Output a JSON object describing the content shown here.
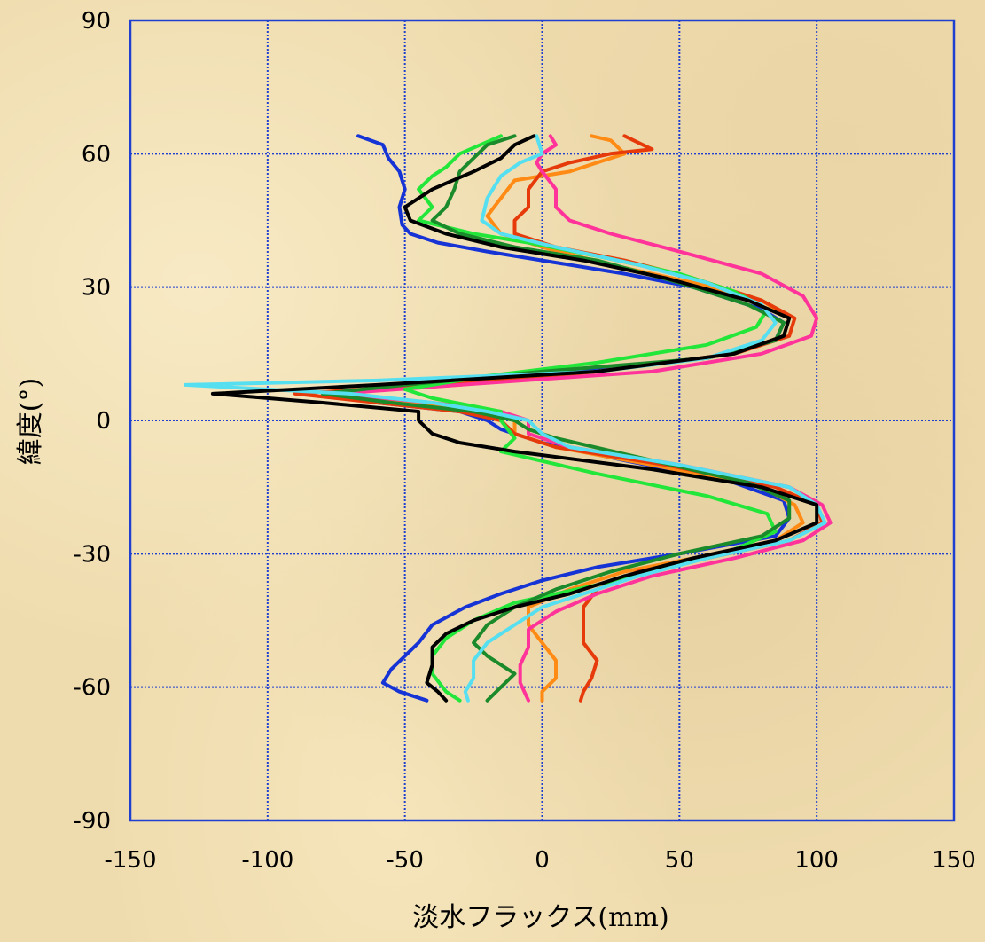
{
  "chart_data": {
    "type": "line",
    "title": "",
    "xlabel": "淡水フラックス(mm)",
    "ylabel": "緯度(°)",
    "xlim": [
      -150,
      150
    ],
    "ylim": [
      -90,
      90
    ],
    "x_ticks": [
      "-150",
      "-100",
      "-50",
      "0",
      "50",
      "100",
      "150"
    ],
    "y_ticks": [
      "90",
      "60",
      "30",
      "0",
      "-30",
      "-60",
      "-90"
    ],
    "grid": true,
    "legend": "none",
    "series": [
      {
        "color": "#1634d6",
        "points": [
          [
            -67,
            64
          ],
          [
            -58,
            62
          ],
          [
            -56,
            59
          ],
          [
            -52,
            56
          ],
          [
            -50,
            52
          ],
          [
            -52,
            48
          ],
          [
            -51,
            44
          ],
          [
            -48,
            42
          ],
          [
            -38,
            40
          ],
          [
            -20,
            38
          ],
          [
            0,
            36
          ],
          [
            30,
            33
          ],
          [
            55,
            30
          ],
          [
            80,
            25
          ],
          [
            88,
            22
          ],
          [
            85,
            18
          ],
          [
            60,
            14
          ],
          [
            10,
            11
          ],
          [
            -40,
            8
          ],
          [
            -80,
            6
          ],
          [
            -60,
            4
          ],
          [
            -30,
            2
          ],
          [
            -20,
            0
          ],
          [
            -15,
            -2
          ],
          [
            0,
            -5
          ],
          [
            30,
            -9
          ],
          [
            70,
            -14
          ],
          [
            88,
            -18
          ],
          [
            90,
            -22
          ],
          [
            85,
            -26
          ],
          [
            50,
            -30
          ],
          [
            20,
            -33
          ],
          [
            0,
            -36
          ],
          [
            -15,
            -39
          ],
          [
            -28,
            -42
          ],
          [
            -40,
            -46
          ],
          [
            -45,
            -50
          ],
          [
            -50,
            -53
          ],
          [
            -55,
            -56
          ],
          [
            -58,
            -59
          ],
          [
            -52,
            -61
          ],
          [
            -42,
            -63
          ]
        ]
      },
      {
        "color": "#ff8a14",
        "points": [
          [
            18,
            64
          ],
          [
            25,
            63
          ],
          [
            30,
            60
          ],
          [
            20,
            58
          ],
          [
            10,
            56
          ],
          [
            -10,
            54
          ],
          [
            -15,
            50
          ],
          [
            -20,
            46
          ],
          [
            -15,
            42
          ],
          [
            0,
            39
          ],
          [
            25,
            35
          ],
          [
            55,
            31
          ],
          [
            80,
            27
          ],
          [
            90,
            23
          ],
          [
            88,
            19
          ],
          [
            70,
            15
          ],
          [
            20,
            11
          ],
          [
            -30,
            8
          ],
          [
            -80,
            6
          ],
          [
            -50,
            4
          ],
          [
            -20,
            2
          ],
          [
            -10,
            0
          ],
          [
            -10,
            -3
          ],
          [
            5,
            -6
          ],
          [
            40,
            -10
          ],
          [
            80,
            -15
          ],
          [
            92,
            -19
          ],
          [
            95,
            -23
          ],
          [
            85,
            -27
          ],
          [
            55,
            -31
          ],
          [
            30,
            -34
          ],
          [
            10,
            -38
          ],
          [
            -5,
            -42
          ],
          [
            -5,
            -46
          ],
          [
            0,
            -50
          ],
          [
            5,
            -54
          ],
          [
            5,
            -58
          ],
          [
            0,
            -61
          ],
          [
            0,
            -63
          ]
        ]
      },
      {
        "color": "#e63a0a",
        "points": [
          [
            30,
            64
          ],
          [
            40,
            61
          ],
          [
            25,
            60
          ],
          [
            10,
            58
          ],
          [
            0,
            56
          ],
          [
            -5,
            52
          ],
          [
            -5,
            48
          ],
          [
            -10,
            45
          ],
          [
            -10,
            42
          ],
          [
            5,
            39
          ],
          [
            30,
            36
          ],
          [
            55,
            32
          ],
          [
            80,
            27
          ],
          [
            92,
            23
          ],
          [
            90,
            19
          ],
          [
            70,
            15
          ],
          [
            20,
            11
          ],
          [
            -40,
            8
          ],
          [
            -90,
            6
          ],
          [
            -60,
            4
          ],
          [
            -30,
            2
          ],
          [
            -15,
            0
          ],
          [
            -10,
            -3
          ],
          [
            5,
            -6
          ],
          [
            45,
            -10
          ],
          [
            85,
            -15
          ],
          [
            100,
            -19
          ],
          [
            102,
            -23
          ],
          [
            90,
            -27
          ],
          [
            60,
            -31
          ],
          [
            35,
            -34
          ],
          [
            20,
            -38
          ],
          [
            15,
            -42
          ],
          [
            15,
            -46
          ],
          [
            15,
            -50
          ],
          [
            20,
            -54
          ],
          [
            18,
            -58
          ],
          [
            15,
            -61
          ],
          [
            14,
            -63
          ]
        ]
      },
      {
        "color": "#ff3399",
        "points": [
          [
            3,
            64
          ],
          [
            5,
            62
          ],
          [
            0,
            60
          ],
          [
            -2,
            58
          ],
          [
            0,
            56
          ],
          [
            5,
            52
          ],
          [
            5,
            48
          ],
          [
            10,
            45
          ],
          [
            25,
            42
          ],
          [
            50,
            38
          ],
          [
            80,
            33
          ],
          [
            95,
            28
          ],
          [
            100,
            23
          ],
          [
            98,
            19
          ],
          [
            80,
            15
          ],
          [
            40,
            11
          ],
          [
            -30,
            8
          ],
          [
            -75,
            6
          ],
          [
            -40,
            4
          ],
          [
            -15,
            2
          ],
          [
            -5,
            0
          ],
          [
            -5,
            -3
          ],
          [
            10,
            -6
          ],
          [
            50,
            -10
          ],
          [
            90,
            -15
          ],
          [
            102,
            -19
          ],
          [
            105,
            -23
          ],
          [
            95,
            -27
          ],
          [
            70,
            -31
          ],
          [
            40,
            -35
          ],
          [
            20,
            -39
          ],
          [
            5,
            -43
          ],
          [
            -5,
            -47
          ],
          [
            -5,
            -51
          ],
          [
            -8,
            -55
          ],
          [
            -8,
            -59
          ],
          [
            -5,
            -63
          ]
        ]
      },
      {
        "color": "#22e639",
        "points": [
          [
            -15,
            64
          ],
          [
            -30,
            60
          ],
          [
            -35,
            57
          ],
          [
            -40,
            55
          ],
          [
            -45,
            52
          ],
          [
            -40,
            48
          ],
          [
            -45,
            45
          ],
          [
            -25,
            42
          ],
          [
            -5,
            40
          ],
          [
            20,
            37
          ],
          [
            50,
            33
          ],
          [
            70,
            29
          ],
          [
            82,
            25
          ],
          [
            78,
            21
          ],
          [
            60,
            17
          ],
          [
            20,
            13
          ],
          [
            -20,
            10
          ],
          [
            -50,
            7
          ],
          [
            -40,
            5
          ],
          [
            -15,
            2
          ],
          [
            -15,
            0
          ],
          [
            -10,
            -4
          ],
          [
            -15,
            -7
          ],
          [
            20,
            -12
          ],
          [
            60,
            -17
          ],
          [
            82,
            -21
          ],
          [
            85,
            -25
          ],
          [
            70,
            -29
          ],
          [
            45,
            -33
          ],
          [
            20,
            -37
          ],
          [
            -10,
            -41
          ],
          [
            -25,
            -45
          ],
          [
            -35,
            -49
          ],
          [
            -40,
            -53
          ],
          [
            -40,
            -57
          ],
          [
            -35,
            -61
          ],
          [
            -30,
            -63
          ]
        ]
      },
      {
        "color": "#1a8a2a",
        "points": [
          [
            -10,
            64
          ],
          [
            -20,
            62
          ],
          [
            -25,
            59
          ],
          [
            -30,
            56
          ],
          [
            -32,
            52
          ],
          [
            -35,
            48
          ],
          [
            -40,
            45
          ],
          [
            -30,
            42
          ],
          [
            -10,
            39
          ],
          [
            20,
            36
          ],
          [
            50,
            31
          ],
          [
            75,
            26
          ],
          [
            88,
            22
          ],
          [
            85,
            18
          ],
          [
            60,
            14
          ],
          [
            0,
            11
          ],
          [
            -50,
            8
          ],
          [
            -80,
            6
          ],
          [
            -55,
            4
          ],
          [
            -25,
            2
          ],
          [
            -10,
            0
          ],
          [
            -5,
            -2
          ],
          [
            5,
            -4
          ],
          [
            40,
            -9
          ],
          [
            75,
            -14
          ],
          [
            90,
            -18
          ],
          [
            90,
            -22
          ],
          [
            80,
            -26
          ],
          [
            50,
            -30
          ],
          [
            25,
            -34
          ],
          [
            5,
            -38
          ],
          [
            -10,
            -42
          ],
          [
            -20,
            -46
          ],
          [
            -25,
            -50
          ],
          [
            -20,
            -53
          ],
          [
            -10,
            -57
          ],
          [
            -15,
            -60
          ],
          [
            -20,
            -63
          ]
        ]
      },
      {
        "color": "#55dff0",
        "points": [
          [
            -2,
            64
          ],
          [
            0,
            60
          ],
          [
            -8,
            58
          ],
          [
            -15,
            55
          ],
          [
            -20,
            50
          ],
          [
            -22,
            45
          ],
          [
            -15,
            42
          ],
          [
            5,
            39
          ],
          [
            35,
            35
          ],
          [
            60,
            31
          ],
          [
            80,
            26
          ],
          [
            85,
            22
          ],
          [
            80,
            18
          ],
          [
            60,
            14
          ],
          [
            20,
            11
          ],
          [
            -60,
            9
          ],
          [
            -130,
            8
          ],
          [
            -70,
            6
          ],
          [
            -40,
            4
          ],
          [
            -20,
            2
          ],
          [
            -5,
            0
          ],
          [
            0,
            -3
          ],
          [
            10,
            -6
          ],
          [
            50,
            -10
          ],
          [
            90,
            -15
          ],
          [
            100,
            -19
          ],
          [
            103,
            -23
          ],
          [
            90,
            -27
          ],
          [
            60,
            -31
          ],
          [
            35,
            -35
          ],
          [
            15,
            -39
          ],
          [
            0,
            -42
          ],
          [
            -10,
            -46
          ],
          [
            -20,
            -50
          ],
          [
            -25,
            -54
          ],
          [
            -25,
            -58
          ],
          [
            -28,
            -61
          ],
          [
            -27,
            -63
          ]
        ]
      },
      {
        "color": "#000000",
        "points": [
          [
            -3,
            64
          ],
          [
            -10,
            62
          ],
          [
            -15,
            59
          ],
          [
            -25,
            56
          ],
          [
            -40,
            52
          ],
          [
            -50,
            48
          ],
          [
            -48,
            45
          ],
          [
            -35,
            42
          ],
          [
            -15,
            39
          ],
          [
            15,
            36
          ],
          [
            45,
            32
          ],
          [
            75,
            27
          ],
          [
            90,
            23
          ],
          [
            88,
            19
          ],
          [
            70,
            15
          ],
          [
            20,
            11
          ],
          [
            -60,
            8
          ],
          [
            -120,
            6
          ],
          [
            -80,
            4
          ],
          [
            -45,
            2
          ],
          [
            -45,
            0
          ],
          [
            -40,
            -3
          ],
          [
            -30,
            -5
          ],
          [
            -10,
            -7
          ],
          [
            40,
            -11
          ],
          [
            80,
            -15
          ],
          [
            100,
            -19
          ],
          [
            100,
            -23
          ],
          [
            85,
            -27
          ],
          [
            55,
            -31
          ],
          [
            30,
            -35
          ],
          [
            10,
            -39
          ],
          [
            -10,
            -42
          ],
          [
            -25,
            -45
          ],
          [
            -35,
            -48
          ],
          [
            -40,
            -51
          ],
          [
            -40,
            -55
          ],
          [
            -42,
            -59
          ],
          [
            -38,
            -61
          ],
          [
            -35,
            -63
          ]
        ]
      }
    ]
  }
}
